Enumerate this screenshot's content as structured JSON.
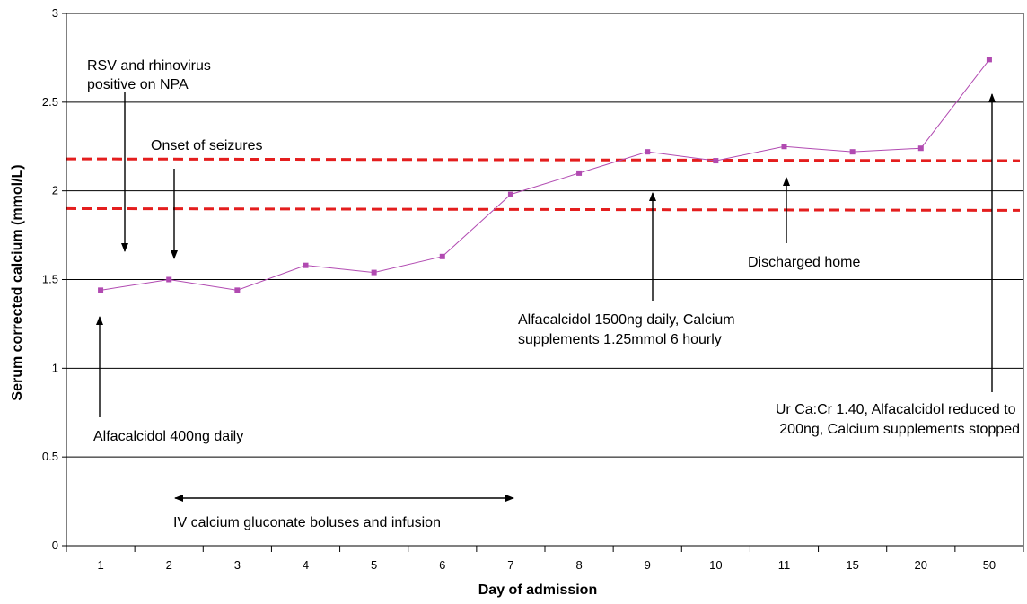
{
  "chart_data": {
    "type": "line",
    "title": "",
    "xlabel": "Day of admission",
    "ylabel": "Serum corrected calcium (mmol/L)",
    "categories": [
      "1",
      "2",
      "3",
      "4",
      "5",
      "6",
      "7",
      "8",
      "9",
      "10",
      "11",
      "15",
      "20",
      "50"
    ],
    "ylim": [
      0,
      3
    ],
    "yticks": [
      "0",
      "0.5",
      "1",
      "1.5",
      "2",
      "2.5",
      "3"
    ],
    "grid": true,
    "series": [
      {
        "values": [
          1.44,
          1.5,
          1.44,
          1.58,
          1.54,
          1.63,
          1.98,
          2.1,
          2.22,
          2.17,
          2.25,
          2.22,
          2.24,
          2.74
        ],
        "color": "#b14ab1"
      }
    ],
    "reference_lines": [
      {
        "start": 2.18,
        "end": 2.17,
        "color": "#e41e1e"
      },
      {
        "start": 1.9,
        "end": 1.89,
        "color": "#e41e1e"
      }
    ],
    "annotations": {
      "rsv": [
        "RSV and rhinovirus",
        "positive on NPA"
      ],
      "seizures": [
        "Onset of seizures"
      ],
      "alfacalcidol_400": [
        "Alfacalcidol 400ng daily"
      ],
      "iv_calcium": [
        "IV calcium gluconate boluses and infusion"
      ],
      "alfacalcidol_1500": [
        "Alfacalcidol 1500ng daily, Calcium",
        "supplements 1.25mmol 6 hourly"
      ],
      "discharged": [
        "Discharged home"
      ],
      "urcacr": [
        "Ur Ca:Cr 1.40, Alfacalcidol reduced to",
        "200ng, Calcium supplements stopped"
      ]
    }
  }
}
